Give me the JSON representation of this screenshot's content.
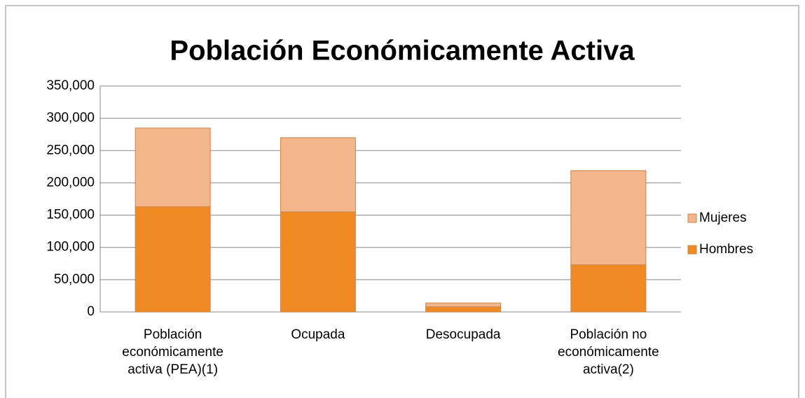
{
  "chart_data": {
    "type": "stacked_bar",
    "title": "Población Económicamente Activa",
    "categories": [
      "Población económicamente activa (PEA)(1)",
      "Ocupada",
      "Desocupada",
      "Población no económicamente activa(2)"
    ],
    "series": [
      {
        "name": "Hombres",
        "color": "#f08a24",
        "values": [
          163000,
          155000,
          8000,
          73000
        ]
      },
      {
        "name": "Mujeres",
        "color": "#f2b68a",
        "values": [
          122000,
          115000,
          6000,
          146000
        ]
      }
    ],
    "ylim": [
      0,
      350000
    ],
    "yticks": [
      0,
      {
        "value": 50000,
        "label": "50,000"
      },
      {
        "value": 100000,
        "label": "100,000"
      },
      {
        "value": 150000,
        "label": "150,000"
      },
      {
        "value": 200000,
        "label": "200,000"
      },
      {
        "value": 250000,
        "label": "250,000"
      },
      {
        "value": 300000,
        "label": "300,000"
      },
      {
        "value": 350000,
        "label": "350,000"
      }
    ],
    "grid": true,
    "legend": "right"
  }
}
